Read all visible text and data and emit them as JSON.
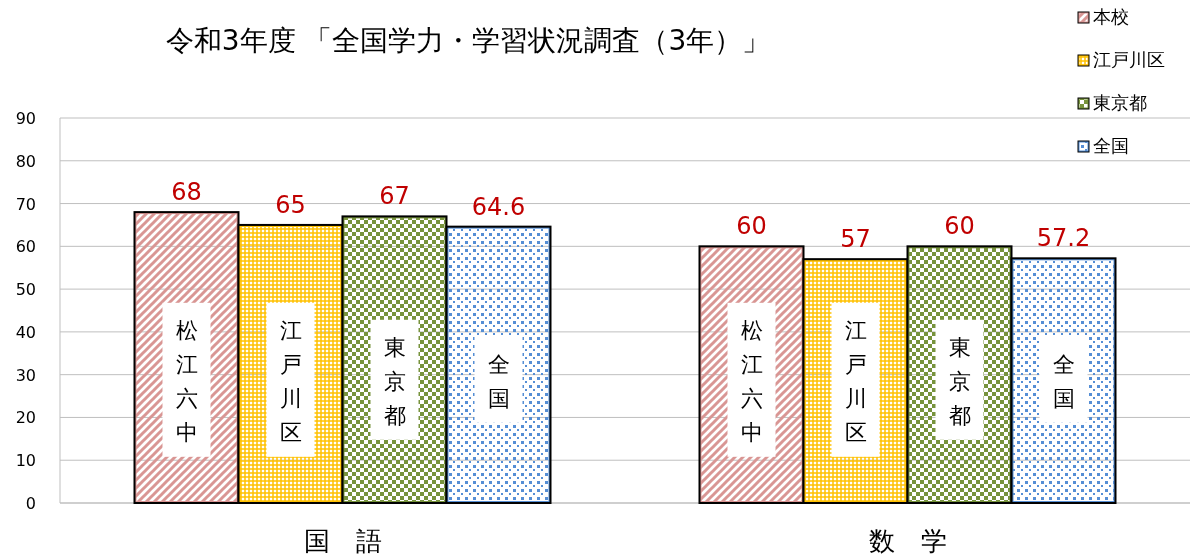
{
  "chart_data": {
    "type": "bar",
    "title": "令和3年度 「全国学力・学習状況調査（3年）」",
    "categories": [
      "国　語",
      "数　学"
    ],
    "series": [
      {
        "name": "本校",
        "color": "#d99694",
        "values": [
          68,
          60
        ]
      },
      {
        "name": "江戸川区",
        "color": "#ffc000",
        "values": [
          65,
          57
        ]
      },
      {
        "name": "東京都",
        "color": "#77933c",
        "values": [
          67,
          60
        ]
      },
      {
        "name": "全国",
        "color": "#558ed5",
        "values": [
          64.6,
          57.2
        ]
      }
    ],
    "ylim": [
      0,
      90
    ],
    "yticks": [
      0,
      10,
      20,
      30,
      40,
      50,
      60,
      70,
      80,
      90
    ],
    "grid": "y",
    "legend": "top right",
    "data_labels": true,
    "annotations": [
      "松江六中",
      "江戸川区",
      "東京都",
      "全国",
      "松江六中",
      "江戸川区",
      "東京都",
      "全国"
    ]
  }
}
